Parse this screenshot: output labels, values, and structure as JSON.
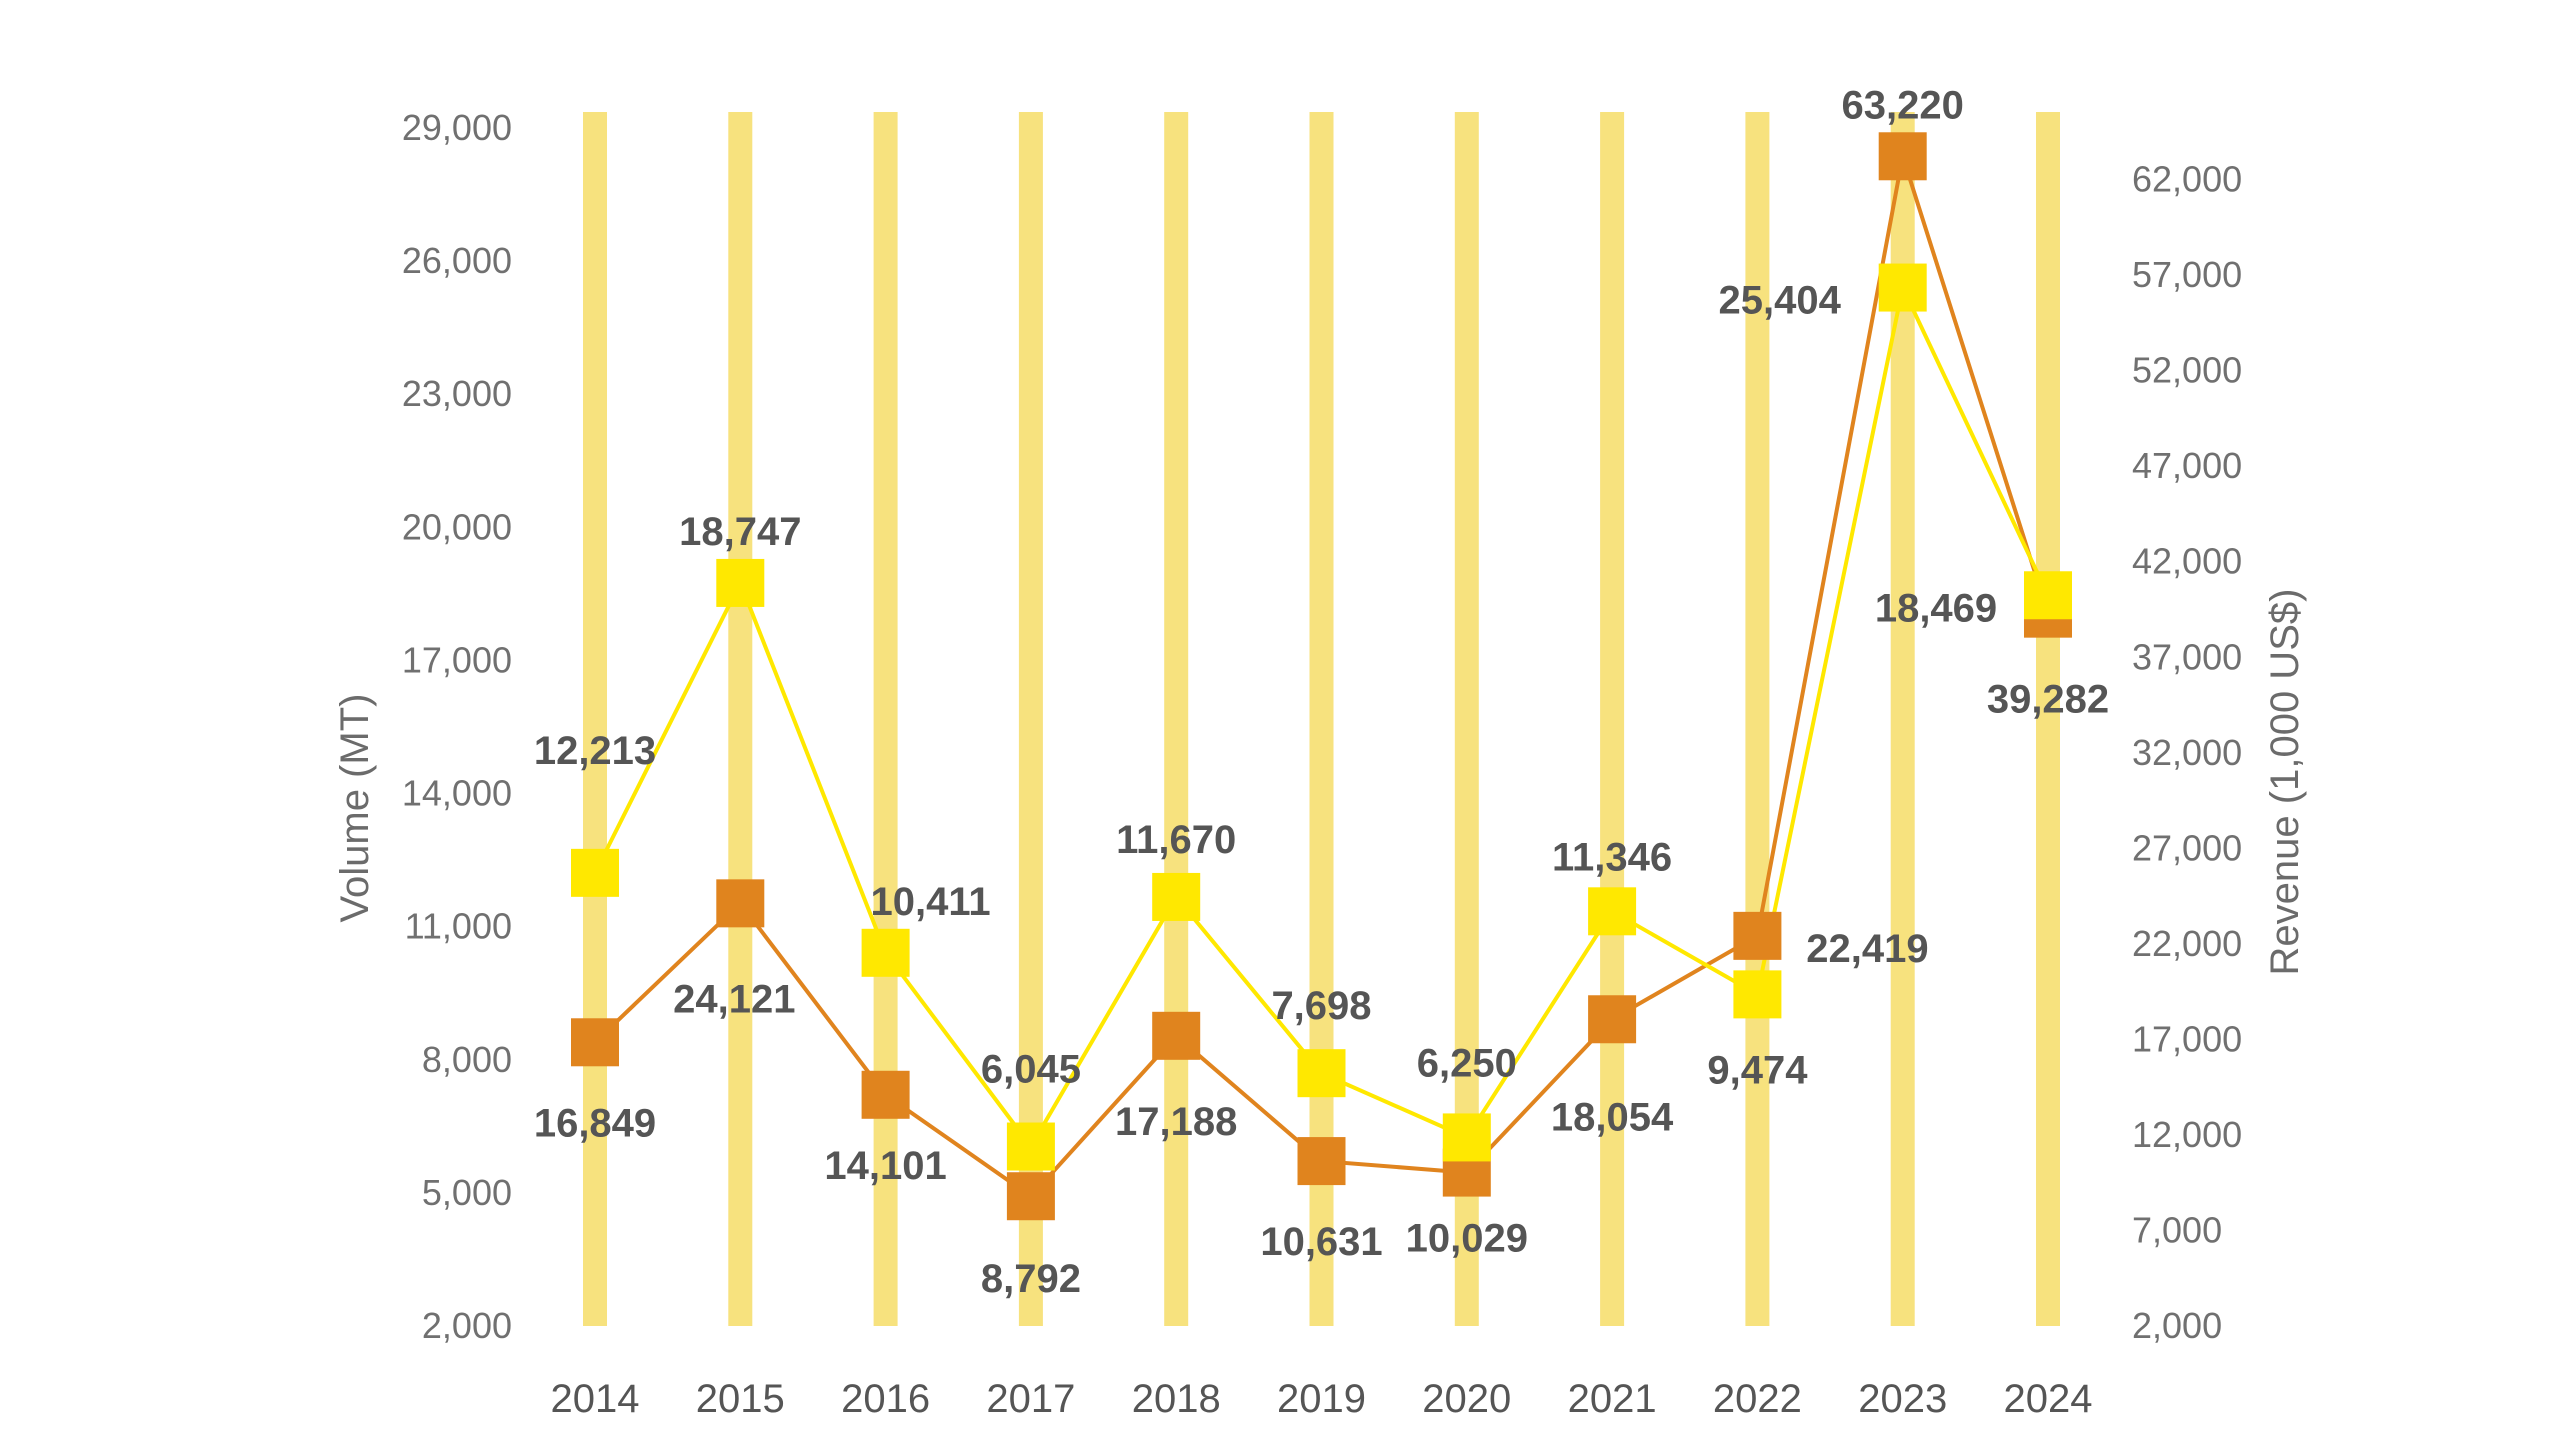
{
  "chart_data": {
    "type": "line",
    "categories": [
      "2014",
      "2015",
      "2016",
      "2017",
      "2018",
      "2019",
      "2020",
      "2021",
      "2022",
      "2023",
      "2024"
    ],
    "series": [
      {
        "axis": "left",
        "color": "#FFE800",
        "marker": "square",
        "values": [
          12213,
          18747,
          10411,
          6045,
          11670,
          7698,
          6250,
          11346,
          9474,
          25404,
          18469
        ],
        "labels": [
          "12,213",
          "18,747",
          "10,411",
          "6,045",
          "11,670",
          "7,698",
          "6,250",
          "11,346",
          "9,474",
          "25,404",
          "18,469"
        ]
      },
      {
        "axis": "right",
        "color": "#E0841E",
        "marker": "square",
        "values": [
          16849,
          24121,
          14101,
          8792,
          17188,
          10631,
          10029,
          18054,
          22419,
          63220,
          39282
        ],
        "labels": [
          "16,849",
          "24,121",
          "14,101",
          "8,792",
          "17,188",
          "10,631",
          "10,029",
          "18,054",
          "22,419",
          "63,220",
          "39,282"
        ]
      }
    ],
    "ylabel_left": "Volume (MT)",
    "ylabel_right": "Revenue (1,000 US$)",
    "ylim_left": [
      2000,
      29000
    ],
    "ylim_right": [
      2000,
      64700
    ],
    "yticks_left": [
      "2,000",
      "5,000",
      "8,000",
      "11,000",
      "14,000",
      "17,000",
      "20,000",
      "23,000",
      "26,000",
      "29,000"
    ],
    "yticks_left_values": [
      2000,
      5000,
      8000,
      11000,
      14000,
      17000,
      20000,
      23000,
      26000,
      29000
    ],
    "yticks_right": [
      "2,000",
      "7,000",
      "12,000",
      "17,000",
      "22,000",
      "27,000",
      "32,000",
      "37,000",
      "42,000",
      "47,000",
      "52,000",
      "57,000",
      "62,000"
    ],
    "yticks_right_values": [
      2000,
      7000,
      12000,
      17000,
      22000,
      27000,
      32000,
      37000,
      42000,
      47000,
      52000,
      57000,
      62000
    ],
    "category_band_color": "#F7E27E",
    "grid": false,
    "legend": "none"
  }
}
